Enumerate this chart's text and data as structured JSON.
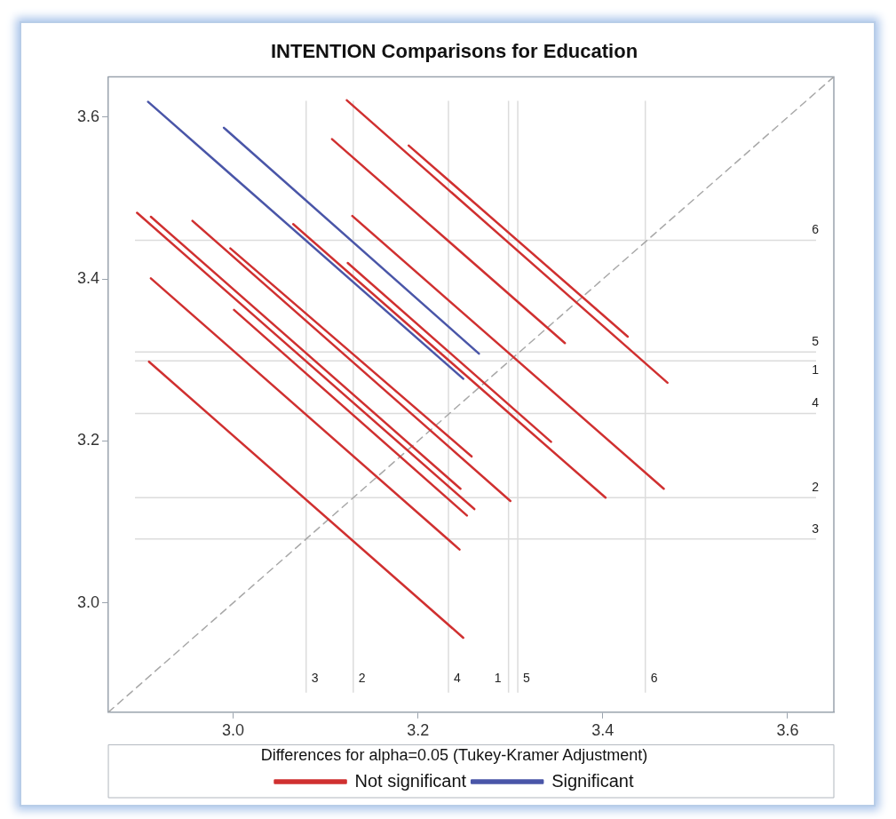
{
  "chart_data": {
    "type": "line",
    "title": "INTENTION Comparisons for Education",
    "legend_title": "Differences for alpha=0.05 (Tukey-Kramer Adjustment)",
    "xlim": [
      2.865,
      3.65
    ],
    "ylim": [
      2.865,
      3.65
    ],
    "xticks": [
      {
        "value": 3,
        "label": "3.0"
      },
      3.2,
      3.4,
      3.6
    ],
    "yticks": [
      {
        "value": 3,
        "label": "3.0"
      },
      3.2,
      3.4,
      3.6
    ],
    "grid": false,
    "legend": "bottom",
    "marker": "none",
    "series": [
      {
        "name": "Not significant",
        "color": "#d03030",
        "x": [
          3.123,
          3.47
        ],
        "values": [
          3.621,
          3.272
        ]
      },
      {
        "color": "#d03030",
        "x": [
          3.107,
          3.359
        ],
        "values": [
          3.573,
          3.321
        ]
      },
      {
        "color": "#d03030",
        "x": [
          3.19,
          3.427
        ],
        "values": [
          3.565,
          3.329
        ]
      },
      {
        "color": "#d03030",
        "x": [
          2.896,
          3.261
        ],
        "values": [
          3.482,
          3.116
        ]
      },
      {
        "color": "#d03030",
        "x": [
          2.911,
          3.246
        ],
        "values": [
          3.477,
          3.141
        ]
      },
      {
        "color": "#d03030",
        "x": [
          2.956,
          3.3
        ],
        "values": [
          3.472,
          3.126
        ]
      },
      {
        "color": "#d03030",
        "x": [
          3.065,
          3.403
        ],
        "values": [
          3.468,
          3.13
        ]
      },
      {
        "color": "#d03030",
        "x": [
          2.997,
          3.258
        ],
        "values": [
          3.438,
          3.181
        ]
      },
      {
        "color": "#d03030",
        "x": [
          3.129,
          3.466
        ],
        "values": [
          3.478,
          3.141
        ]
      },
      {
        "color": "#d03030",
        "x": [
          3.124,
          3.344
        ],
        "values": [
          3.42,
          3.199
        ]
      },
      {
        "color": "#d03030",
        "x": [
          2.911,
          3.245
        ],
        "values": [
          3.401,
          3.066
        ]
      },
      {
        "color": "#d03030",
        "x": [
          3.001,
          3.253
        ],
        "values": [
          3.362,
          3.108
        ]
      },
      {
        "color": "#d03030",
        "x": [
          2.909,
          3.249
        ],
        "values": [
          3.298,
          2.957
        ]
      },
      {
        "name": "Significant",
        "color": "#4a56a8",
        "x": [
          2.908,
          3.249
        ],
        "values": [
          3.619,
          3.277
        ]
      },
      {
        "color": "#4a56a8",
        "x": [
          2.99,
          3.266
        ],
        "values": [
          3.587,
          3.308
        ]
      },
      {
        "color": "#a8a8a8",
        "line_style": "dashed",
        "x": [
          2.865,
          3.65
        ],
        "values": [
          2.865,
          3.65
        ]
      }
    ],
    "ref_lines": [
      {
        "axis": "x",
        "value": 3.079,
        "color": "#dcdcdc"
      },
      {
        "axis": "x",
        "value": 3.13,
        "color": "#dcdcdc"
      },
      {
        "axis": "x",
        "value": 3.233,
        "color": "#dcdcdc"
      },
      {
        "axis": "x",
        "value": 3.298,
        "color": "#dcdcdc"
      },
      {
        "axis": "x",
        "value": 3.308,
        "color": "#dcdcdc"
      },
      {
        "axis": "x",
        "value": 3.446,
        "color": "#dcdcdc"
      },
      {
        "axis": "y",
        "value": 3.448,
        "color": "#dcdcdc"
      },
      {
        "axis": "y",
        "value": 3.31,
        "color": "#dcdcdc"
      },
      {
        "axis": "y",
        "value": 3.299,
        "color": "#dcdcdc"
      },
      {
        "axis": "y",
        "value": 3.234,
        "color": "#dcdcdc"
      },
      {
        "axis": "y",
        "value": 3.13,
        "color": "#dcdcdc"
      },
      {
        "axis": "y",
        "value": 3.079,
        "color": "#dcdcdc"
      }
    ],
    "annotations": [
      {
        "text": "3",
        "x": 3.079
      },
      {
        "text": "2",
        "x": 3.13
      },
      {
        "text": "4",
        "x": 3.233
      },
      {
        "text": "1",
        "x": 3.298
      },
      {
        "text": "5",
        "x": 3.308
      },
      {
        "text": "6",
        "x": 3.446
      },
      {
        "text": "6",
        "x": 3.63,
        "y": 3.448
      },
      {
        "text": "5",
        "x": 3.63,
        "y": 3.31
      },
      {
        "text": "1",
        "x": 3.63,
        "y": 3.299
      },
      {
        "text": "4",
        "x": 3.63,
        "y": 3.234
      },
      {
        "text": "2",
        "x": 3.63,
        "y": 3.13
      },
      {
        "text": "3",
        "x": 3.63,
        "y": 3.079
      }
    ]
  }
}
